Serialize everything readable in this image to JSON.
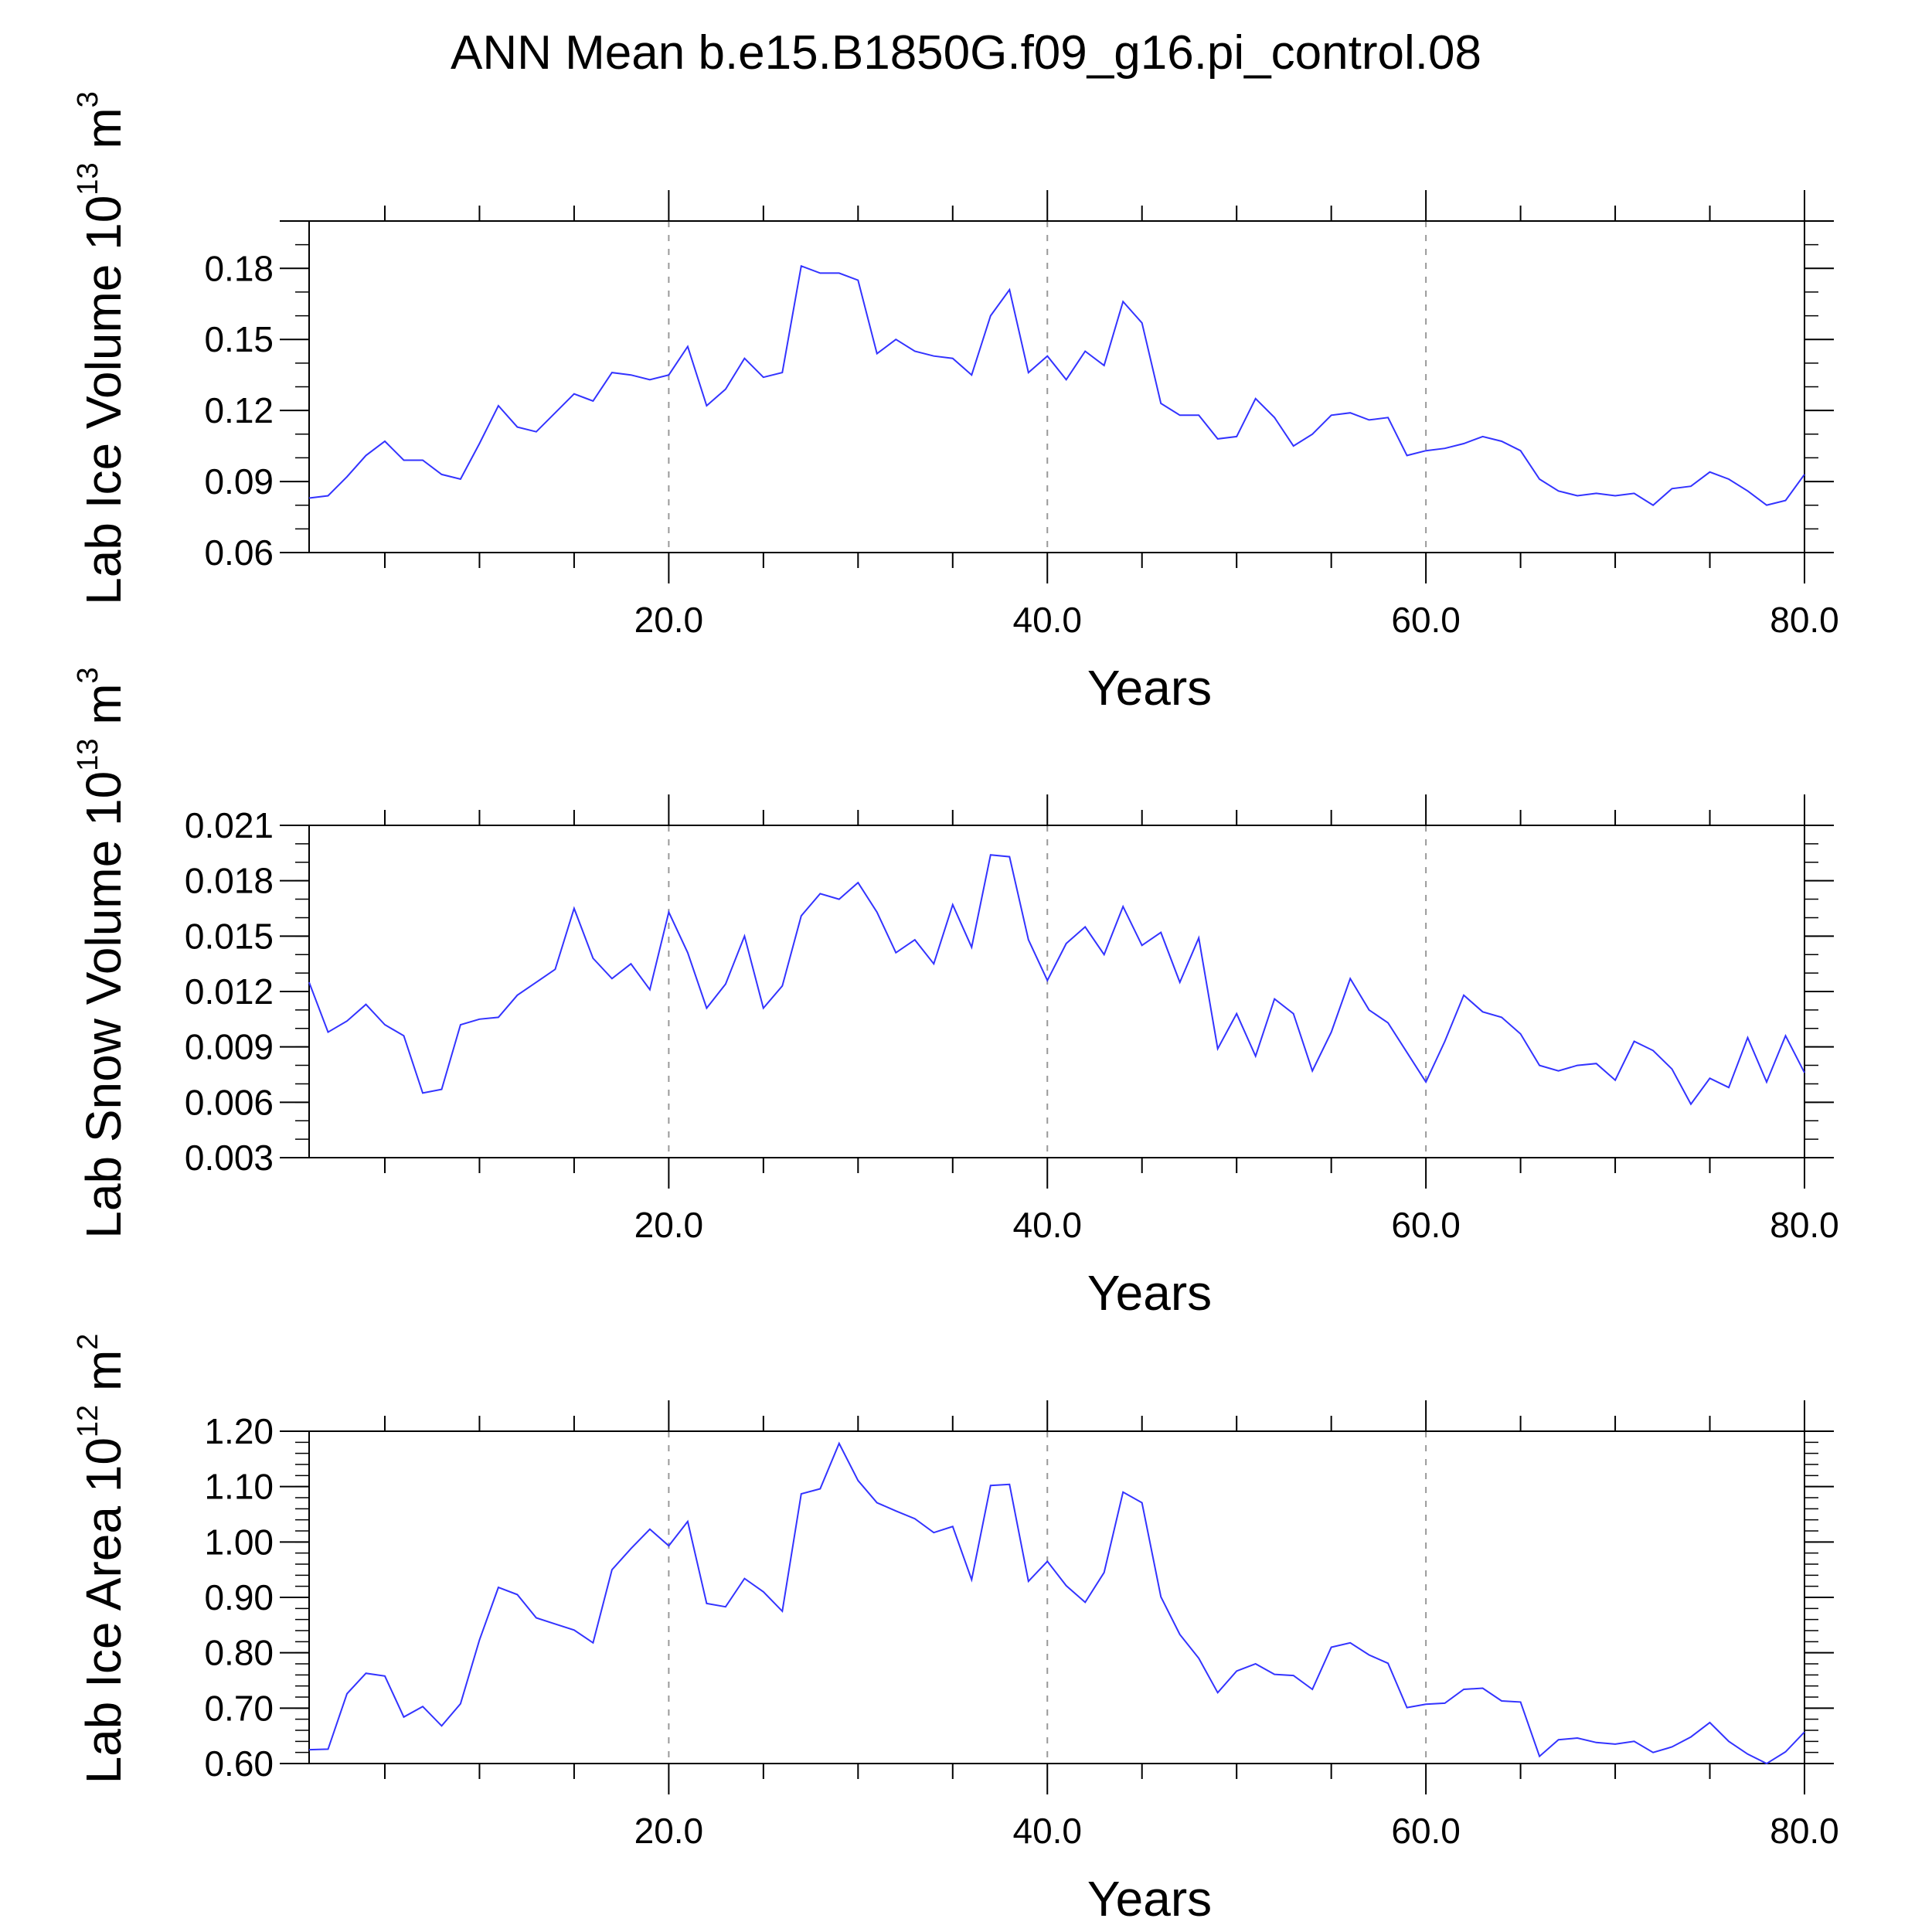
{
  "title": "ANN Mean b.e15.B1850G.f09_g16.pi_control.08",
  "colors": {
    "line": "#3333ff",
    "axis": "#000000",
    "grid": "#999999"
  },
  "chart_data": [
    {
      "type": "line",
      "ylabel": {
        "main": "Lab Ice Volume 10",
        "exp": "13",
        "unit": " m",
        "unit_exp": "3"
      },
      "xlabel": "Years",
      "xlim": [
        1,
        80
      ],
      "ylim": [
        0.06,
        0.2
      ],
      "xticks": [
        20,
        40,
        60,
        80
      ],
      "xtick_labels": [
        "20.0",
        "40.0",
        "60.0",
        "80.0"
      ],
      "yticks": [
        0.06,
        0.09,
        0.12,
        0.15,
        0.18
      ],
      "ytick_labels": [
        "0.06",
        "0.09",
        "0.12",
        "0.15",
        "0.18"
      ],
      "y_minor_step": 0.01,
      "x": [
        1,
        2,
        3,
        4,
        5,
        6,
        7,
        8,
        9,
        10,
        11,
        12,
        13,
        14,
        15,
        16,
        17,
        18,
        19,
        20,
        21,
        22,
        23,
        24,
        25,
        26,
        27,
        28,
        29,
        30,
        31,
        32,
        33,
        34,
        35,
        36,
        37,
        38,
        39,
        40,
        41,
        42,
        43,
        44,
        45,
        46,
        47,
        48,
        49,
        50,
        51,
        52,
        53,
        54,
        55,
        56,
        57,
        58,
        59,
        60,
        61,
        62,
        63,
        64,
        65,
        66,
        67,
        68,
        69,
        70,
        71,
        72,
        73,
        74,
        75,
        76,
        77,
        78,
        79,
        80
      ],
      "values": [
        0.083,
        0.084,
        0.092,
        0.101,
        0.107,
        0.099,
        0.099,
        0.093,
        0.091,
        0.106,
        0.122,
        0.113,
        0.111,
        0.119,
        0.127,
        0.124,
        0.136,
        0.135,
        0.133,
        0.135,
        0.147,
        0.122,
        0.129,
        0.142,
        0.134,
        0.136,
        0.181,
        0.178,
        0.178,
        0.175,
        0.144,
        0.15,
        0.145,
        0.143,
        0.142,
        0.135,
        0.16,
        0.171,
        0.136,
        0.143,
        0.133,
        0.145,
        0.139,
        0.166,
        0.157,
        0.123,
        0.118,
        0.118,
        0.108,
        0.109,
        0.125,
        0.117,
        0.105,
        0.11,
        0.118,
        0.119,
        0.116,
        0.117,
        0.101,
        0.103,
        0.104,
        0.106,
        0.109,
        0.107,
        0.103,
        0.091,
        0.086,
        0.084,
        0.085,
        0.084,
        0.085,
        0.08,
        0.087,
        0.088,
        0.094,
        0.091,
        0.086,
        0.08,
        0.082,
        0.093
      ]
    },
    {
      "type": "line",
      "ylabel": {
        "main": "Lab Snow Volume 10",
        "exp": "13",
        "unit": " m",
        "unit_exp": "3"
      },
      "xlabel": "Years",
      "xlim": [
        1,
        80
      ],
      "ylim": [
        0.003,
        0.021
      ],
      "xticks": [
        20,
        40,
        60,
        80
      ],
      "xtick_labels": [
        "20.0",
        "40.0",
        "60.0",
        "80.0"
      ],
      "yticks": [
        0.003,
        0.006,
        0.009,
        0.012,
        0.015,
        0.018,
        0.021
      ],
      "ytick_labels": [
        "0.003",
        "0.006",
        "0.009",
        "0.012",
        "0.015",
        "0.018",
        "0.021"
      ],
      "y_minor_step": 0.001,
      "x": [
        1,
        2,
        3,
        4,
        5,
        6,
        7,
        8,
        9,
        10,
        11,
        12,
        13,
        14,
        15,
        16,
        17,
        18,
        19,
        20,
        21,
        22,
        23,
        24,
        25,
        26,
        27,
        28,
        29,
        30,
        31,
        32,
        33,
        34,
        35,
        36,
        37,
        38,
        39,
        40,
        41,
        42,
        43,
        44,
        45,
        46,
        47,
        48,
        49,
        50,
        51,
        52,
        53,
        54,
        55,
        56,
        57,
        58,
        59,
        60,
        61,
        62,
        63,
        64,
        65,
        66,
        67,
        68,
        69,
        70,
        71,
        72,
        73,
        74,
        75,
        76,
        77,
        78,
        79,
        80
      ],
      "values": [
        0.0125,
        0.0098,
        0.0104,
        0.0113,
        0.0102,
        0.0096,
        0.0065,
        0.0067,
        0.0102,
        0.0105,
        0.0106,
        0.0118,
        0.0125,
        0.0132,
        0.0165,
        0.0138,
        0.0127,
        0.0135,
        0.0121,
        0.0163,
        0.0141,
        0.0111,
        0.0124,
        0.015,
        0.0111,
        0.0123,
        0.0161,
        0.0173,
        0.017,
        0.0179,
        0.0163,
        0.0141,
        0.0148,
        0.0135,
        0.0167,
        0.0144,
        0.0194,
        0.0193,
        0.0148,
        0.0126,
        0.0146,
        0.0155,
        0.014,
        0.0166,
        0.0145,
        0.0152,
        0.0125,
        0.0149,
        0.0089,
        0.0108,
        0.0085,
        0.0116,
        0.0108,
        0.0077,
        0.0098,
        0.0127,
        0.011,
        0.0103,
        0.0087,
        0.0071,
        0.0093,
        0.0118,
        0.0109,
        0.0106,
        0.0097,
        0.008,
        0.0077,
        0.008,
        0.0081,
        0.0072,
        0.0093,
        0.0088,
        0.0078,
        0.0059,
        0.0073,
        0.0068,
        0.0095,
        0.0071,
        0.0096,
        0.0076
      ]
    },
    {
      "type": "line",
      "ylabel": {
        "main": "Lab Ice Area 10",
        "exp": "12",
        "unit": " m",
        "unit_exp": "2"
      },
      "xlabel": "Years",
      "xlim": [
        1,
        80
      ],
      "ylim": [
        0.6,
        1.2
      ],
      "xticks": [
        20,
        40,
        60,
        80
      ],
      "xtick_labels": [
        "20.0",
        "40.0",
        "60.0",
        "80.0"
      ],
      "yticks": [
        0.6,
        0.7,
        0.8,
        0.9,
        1.0,
        1.1,
        1.2
      ],
      "ytick_labels": [
        "0.60",
        "0.70",
        "0.80",
        "0.90",
        "1.00",
        "1.10",
        "1.20"
      ],
      "y_minor_step": 0.02,
      "x": [
        1,
        2,
        3,
        4,
        5,
        6,
        7,
        8,
        9,
        10,
        11,
        12,
        13,
        14,
        15,
        16,
        17,
        18,
        19,
        20,
        21,
        22,
        23,
        24,
        25,
        26,
        27,
        28,
        29,
        30,
        31,
        32,
        33,
        34,
        35,
        36,
        37,
        38,
        39,
        40,
        41,
        42,
        43,
        44,
        45,
        46,
        47,
        48,
        49,
        50,
        51,
        52,
        53,
        54,
        55,
        56,
        57,
        58,
        59,
        60,
        61,
        62,
        63,
        64,
        65,
        66,
        67,
        68,
        69,
        70,
        71,
        72,
        73,
        74,
        75,
        76,
        77,
        78,
        79,
        80
      ],
      "values": [
        0.625,
        0.626,
        0.726,
        0.763,
        0.758,
        0.684,
        0.703,
        0.668,
        0.708,
        0.823,
        0.918,
        0.905,
        0.863,
        0.852,
        0.841,
        0.818,
        0.95,
        0.988,
        1.023,
        0.993,
        1.037,
        0.889,
        0.883,
        0.934,
        0.91,
        0.875,
        1.087,
        1.096,
        1.178,
        1.111,
        1.071,
        1.056,
        1.042,
        1.017,
        1.028,
        0.932,
        1.102,
        1.104,
        0.929,
        0.965,
        0.921,
        0.891,
        0.945,
        1.09,
        1.071,
        0.901,
        0.833,
        0.79,
        0.728,
        0.767,
        0.78,
        0.761,
        0.759,
        0.734,
        0.81,
        0.818,
        0.796,
        0.781,
        0.701,
        0.707,
        0.709,
        0.734,
        0.736,
        0.713,
        0.711,
        0.613,
        0.643,
        0.646,
        0.638,
        0.635,
        0.64,
        0.62,
        0.63,
        0.648,
        0.674,
        0.64,
        0.617,
        0.6,
        0.621,
        0.657
      ]
    }
  ]
}
